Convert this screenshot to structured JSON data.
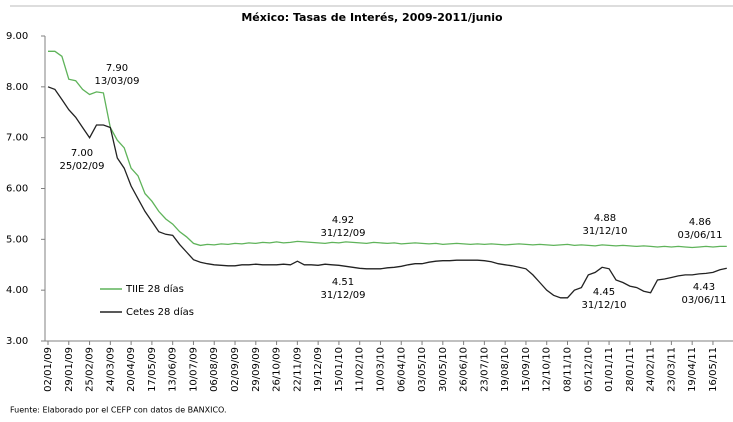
{
  "chart_data": {
    "type": "line",
    "title": "México: Tasas de Interés, 2009-2011/junio",
    "source": "Fuente: Elaborado por el CEFP con datos de BANXICO.",
    "categories": [
      "02/01/09",
      null,
      null,
      "29/01/09",
      null,
      null,
      "25/02/09",
      null,
      null,
      "24/03/09",
      null,
      null,
      "20/04/09",
      null,
      null,
      "17/05/09",
      null,
      null,
      "13/06/09",
      null,
      null,
      "10/07/09",
      null,
      null,
      "06/08/09",
      null,
      null,
      "02/09/09",
      null,
      null,
      "29/09/09",
      null,
      null,
      "26/10/09",
      null,
      null,
      "22/11/09",
      null,
      null,
      "19/12/09",
      null,
      null,
      "15/01/10",
      null,
      null,
      "11/02/10",
      null,
      null,
      "10/03/10",
      null,
      null,
      "06/04/10",
      null,
      null,
      "03/05/10",
      null,
      null,
      "30/05/10",
      null,
      null,
      "26/06/10",
      null,
      null,
      "23/07/10",
      null,
      null,
      "19/08/10",
      null,
      null,
      "15/09/10",
      null,
      null,
      "12/10/10",
      null,
      null,
      "08/11/10",
      null,
      null,
      "05/12/10",
      null,
      null,
      "01/01/11",
      null,
      null,
      "28/01/11",
      null,
      null,
      "24/02/11",
      null,
      null,
      "23/03/11",
      null,
      null,
      "19/04/11",
      null,
      null,
      "16/05/11",
      null,
      null
    ],
    "series": [
      {
        "name": "TIIE 28 días",
        "color": "#5fb35a",
        "values": [
          8.7,
          8.7,
          8.6,
          8.15,
          8.12,
          7.95,
          7.85,
          7.9,
          7.88,
          7.2,
          6.95,
          6.8,
          6.4,
          6.25,
          5.9,
          5.75,
          5.55,
          5.4,
          5.3,
          5.15,
          5.05,
          4.92,
          4.88,
          4.9,
          4.89,
          4.91,
          4.9,
          4.92,
          4.91,
          4.93,
          4.92,
          4.94,
          4.93,
          4.95,
          4.93,
          4.94,
          4.96,
          4.95,
          4.94,
          4.93,
          4.92,
          4.94,
          4.93,
          4.95,
          4.94,
          4.93,
          4.92,
          4.94,
          4.93,
          4.92,
          4.93,
          4.91,
          4.92,
          4.93,
          4.92,
          4.91,
          4.92,
          4.9,
          4.91,
          4.92,
          4.91,
          4.9,
          4.91,
          4.9,
          4.91,
          4.9,
          4.89,
          4.9,
          4.91,
          4.9,
          4.89,
          4.9,
          4.89,
          4.88,
          4.89,
          4.9,
          4.88,
          4.89,
          4.88,
          4.87,
          4.89,
          4.88,
          4.87,
          4.88,
          4.87,
          4.86,
          4.87,
          4.86,
          4.85,
          4.86,
          4.85,
          4.86,
          4.85,
          4.84,
          4.85,
          4.86,
          4.85,
          4.86,
          4.86
        ]
      },
      {
        "name": "Cetes 28 días",
        "color": "#222222",
        "values": [
          8.0,
          7.95,
          7.75,
          7.55,
          7.4,
          7.2,
          7.0,
          7.25,
          7.25,
          7.2,
          6.6,
          6.4,
          6.05,
          5.8,
          5.55,
          5.35,
          5.15,
          5.1,
          5.08,
          4.9,
          4.75,
          4.6,
          4.55,
          4.52,
          4.5,
          4.49,
          4.48,
          4.48,
          4.5,
          4.5,
          4.51,
          4.5,
          4.5,
          4.5,
          4.51,
          4.5,
          4.57,
          4.5,
          4.5,
          4.49,
          4.51,
          4.5,
          4.49,
          4.47,
          4.45,
          4.43,
          4.42,
          4.42,
          4.42,
          4.44,
          4.45,
          4.47,
          4.5,
          4.52,
          4.52,
          4.55,
          4.57,
          4.58,
          4.58,
          4.59,
          4.59,
          4.59,
          4.59,
          4.58,
          4.56,
          4.52,
          4.5,
          4.48,
          4.45,
          4.42,
          4.3,
          4.15,
          4.0,
          3.9,
          3.85,
          3.85,
          4.0,
          4.05,
          4.3,
          4.35,
          4.45,
          4.42,
          4.2,
          4.15,
          4.08,
          4.05,
          3.98,
          3.95,
          4.2,
          4.22,
          4.25,
          4.28,
          4.3,
          4.3,
          4.32,
          4.33,
          4.35,
          4.4,
          4.43
        ]
      }
    ],
    "ylim": [
      3,
      9
    ],
    "yticks": [
      {
        "value": 3,
        "label": "3.00"
      },
      {
        "value": 4,
        "label": "4.00"
      },
      {
        "value": 5,
        "label": "5.00"
      },
      {
        "value": 6,
        "label": "6.00"
      },
      {
        "value": 7,
        "label": "7.00"
      },
      {
        "value": 8,
        "label": "8.00"
      },
      {
        "value": 9,
        "label": "9.00"
      }
    ],
    "annotations": [
      {
        "lines": [
          "7.90",
          "13/03/09"
        ]
      },
      {
        "lines": [
          "7.00",
          "25/02/09"
        ]
      },
      {
        "lines": [
          "4.92",
          "31/12/09"
        ]
      },
      {
        "lines": [
          "4.51",
          "31/12/09"
        ]
      },
      {
        "lines": [
          "4.88",
          "31/12/10"
        ]
      },
      {
        "lines": [
          "4.45",
          "31/12/10"
        ]
      },
      {
        "lines": [
          "4.86",
          "03/06/11"
        ]
      },
      {
        "lines": [
          "4.43",
          "03/06/11"
        ]
      }
    ],
    "legend": "lower left",
    "grid": false
  }
}
